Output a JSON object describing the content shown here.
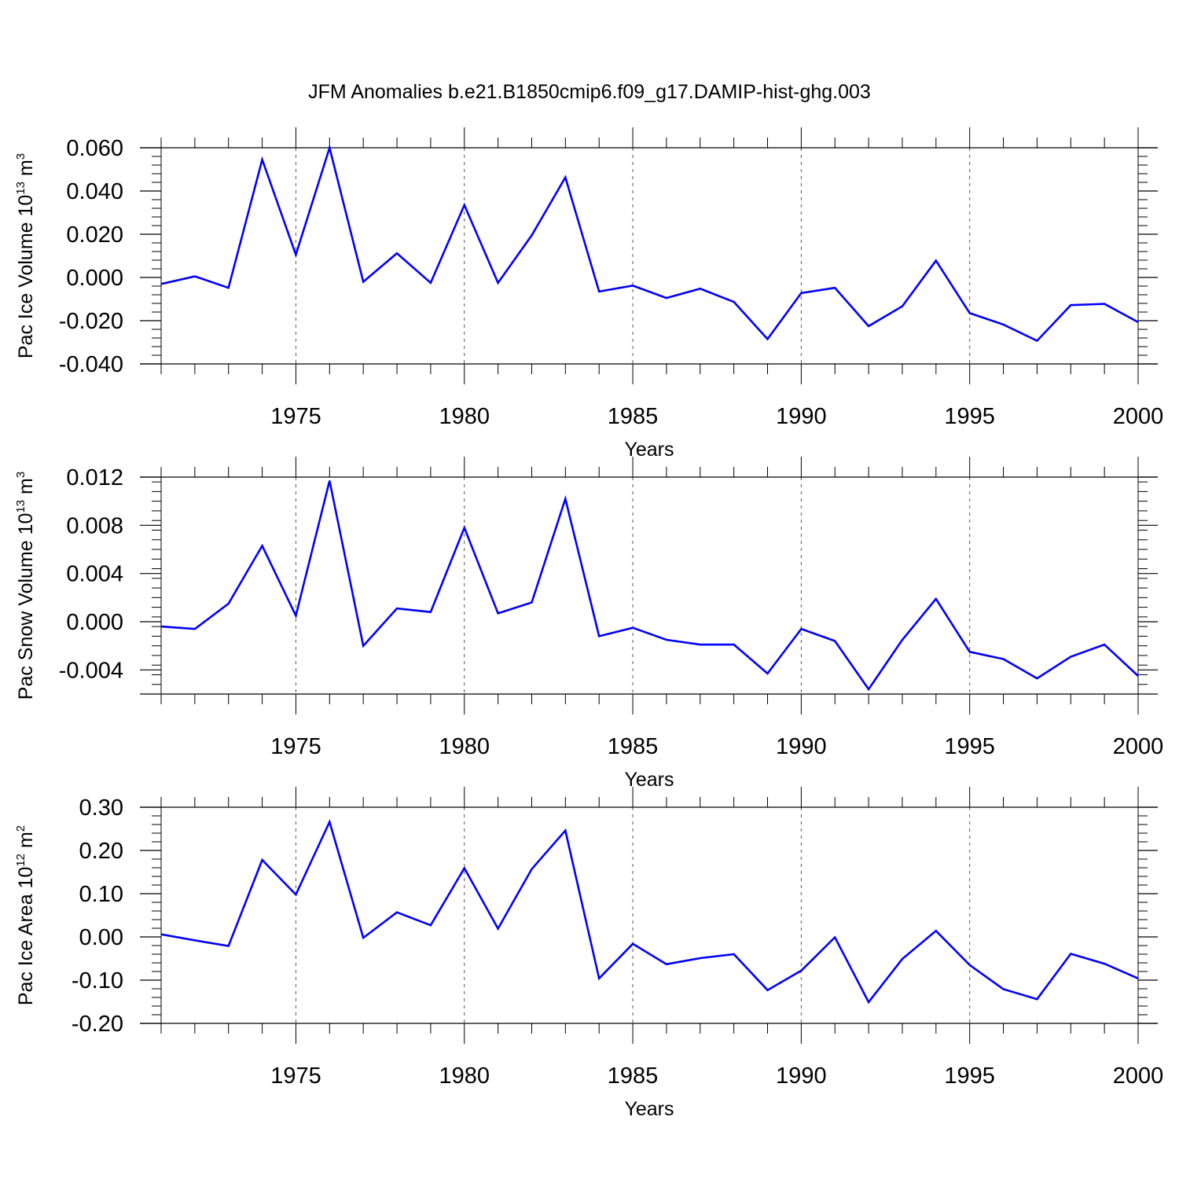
{
  "title": "JFM Anomalies b.e21.B1850cmip6.f09_g17.DAMIP-hist-ghg.003",
  "line_color": "#0000ff",
  "chart_data": [
    {
      "type": "line",
      "ylabel": {
        "text": "Pac Ice Volume 10",
        "exp": "13",
        "unit": " m",
        "unit_exp": "3"
      },
      "xlabel": "Years",
      "xlim": [
        1971,
        2000
      ],
      "ylim": [
        -0.04,
        0.06
      ],
      "yticks": [
        -0.04,
        -0.02,
        0.0,
        0.02,
        0.04,
        0.06
      ],
      "ytick_labels": [
        "-0.040",
        "-0.020",
        "0.000",
        "0.020",
        "0.040",
        "0.060"
      ],
      "xticks": [
        1975,
        1980,
        1985,
        1990,
        1995,
        2000
      ],
      "xtick_labels": [
        "1975",
        "1980",
        "1985",
        "1990",
        "1995",
        "2000"
      ],
      "grid": "vertical dashed at major x ticks",
      "x": [
        1971,
        1972,
        1973,
        1974,
        1975,
        1976,
        1977,
        1978,
        1979,
        1980,
        1981,
        1982,
        1983,
        1984,
        1985,
        1986,
        1987,
        1988,
        1989,
        1990,
        1991,
        1992,
        1993,
        1994,
        1995,
        1996,
        1997,
        1998,
        1999,
        2000
      ],
      "values": [
        -0.003,
        0.0005,
        -0.0048,
        0.0545,
        0.0105,
        0.06,
        -0.002,
        0.0112,
        -0.0025,
        0.0335,
        -0.0025,
        0.0195,
        0.0463,
        -0.0065,
        -0.0038,
        -0.0095,
        -0.0052,
        -0.0113,
        -0.0285,
        -0.0072,
        -0.0048,
        -0.0225,
        -0.0133,
        0.0078,
        -0.0165,
        -0.0218,
        -0.0293,
        -0.0128,
        -0.0122,
        -0.0207
      ]
    },
    {
      "type": "line",
      "ylabel": {
        "text": "Pac Snow Volume 10",
        "exp": "13",
        "unit": " m",
        "unit_exp": "3"
      },
      "xlabel": "Years",
      "xlim": [
        1971,
        2000
      ],
      "ylim": [
        -0.006,
        0.012
      ],
      "yticks": [
        -0.004,
        0.0,
        0.004,
        0.008,
        0.012
      ],
      "ytick_labels": [
        "-0.004",
        "0.000",
        "0.004",
        "0.008",
        "0.012"
      ],
      "xticks": [
        1975,
        1980,
        1985,
        1990,
        1995,
        2000
      ],
      "xtick_labels": [
        "1975",
        "1980",
        "1985",
        "1990",
        "1995",
        "2000"
      ],
      "grid": "vertical dashed at major x ticks",
      "x": [
        1971,
        1972,
        1973,
        1974,
        1975,
        1976,
        1977,
        1978,
        1979,
        1980,
        1981,
        1982,
        1983,
        1984,
        1985,
        1986,
        1987,
        1988,
        1989,
        1990,
        1991,
        1992,
        1993,
        1994,
        1995,
        1996,
        1997,
        1998,
        1999,
        2000
      ],
      "values": [
        -0.0004,
        -0.0006,
        0.0015,
        0.0063,
        0.0005,
        0.0117,
        -0.002,
        0.0011,
        0.0008,
        0.0078,
        0.0007,
        0.0016,
        0.0102,
        -0.0012,
        -0.0005,
        -0.0015,
        -0.0019,
        -0.0019,
        -0.0043,
        -0.0006,
        -0.0016,
        -0.0056,
        -0.0015,
        0.0019,
        -0.0025,
        -0.0031,
        -0.0047,
        -0.0029,
        -0.0019,
        -0.0045
      ]
    },
    {
      "type": "line",
      "ylabel": {
        "text": "Pac Ice Area 10",
        "exp": "12",
        "unit": " m",
        "unit_exp": "2"
      },
      "xlabel": "Years",
      "xlim": [
        1971,
        2000
      ],
      "ylim": [
        -0.2,
        0.3
      ],
      "yticks": [
        -0.2,
        -0.1,
        0.0,
        0.1,
        0.2,
        0.3
      ],
      "ytick_labels": [
        "-0.20",
        "-0.10",
        "0.00",
        "0.10",
        "0.20",
        "0.30"
      ],
      "xticks": [
        1975,
        1980,
        1985,
        1990,
        1995,
        2000
      ],
      "xtick_labels": [
        "1975",
        "1980",
        "1985",
        "1990",
        "1995",
        "2000"
      ],
      "grid": "vertical dashed at major x ticks",
      "x": [
        1971,
        1972,
        1973,
        1974,
        1975,
        1976,
        1977,
        1978,
        1979,
        1980,
        1981,
        1982,
        1983,
        1984,
        1985,
        1986,
        1987,
        1988,
        1989,
        1990,
        1991,
        1992,
        1993,
        1994,
        1995,
        1996,
        1997,
        1998,
        1999,
        2000
      ],
      "values": [
        0.006,
        -0.008,
        -0.021,
        0.178,
        0.098,
        0.266,
        -0.002,
        0.057,
        0.027,
        0.159,
        0.019,
        0.157,
        0.246,
        -0.096,
        -0.016,
        -0.063,
        -0.049,
        -0.04,
        -0.123,
        -0.078,
        -0.001,
        -0.151,
        -0.051,
        0.014,
        -0.065,
        -0.121,
        -0.144,
        -0.039,
        -0.062,
        -0.096
      ]
    }
  ]
}
